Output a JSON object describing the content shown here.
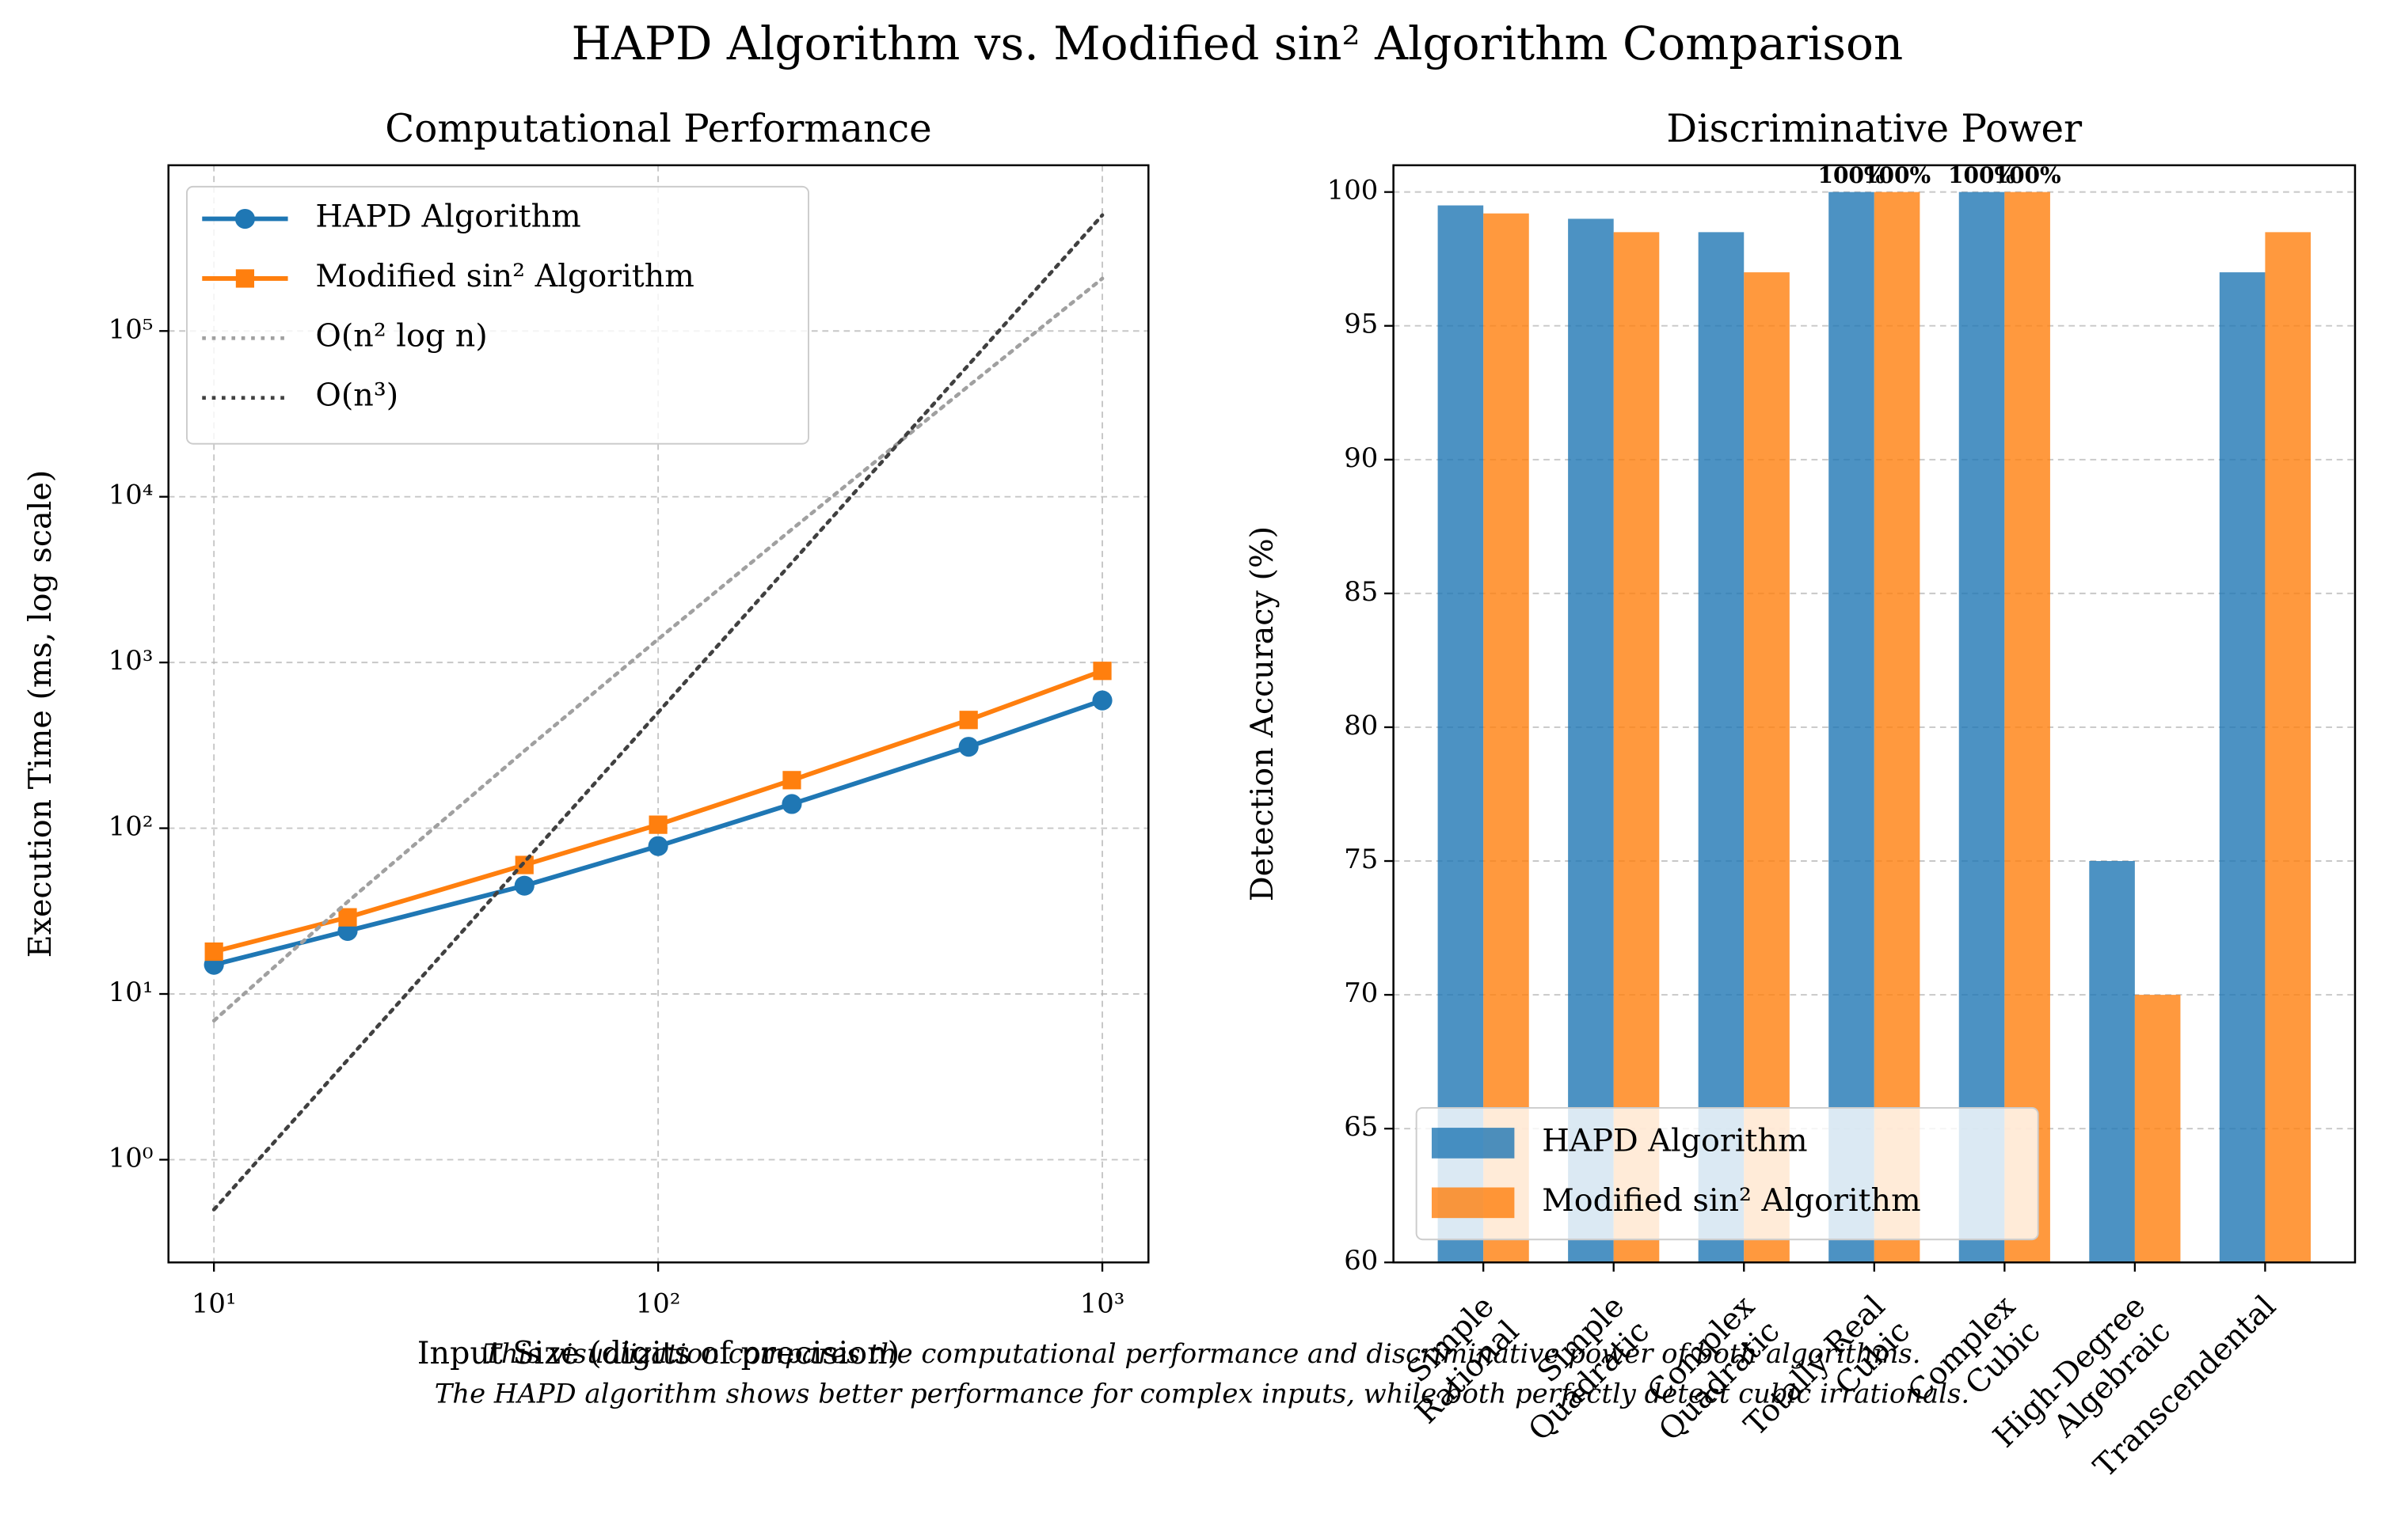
{
  "figure": {
    "title": "HAPD Algorithm vs. Modified sin² Algorithm Comparison",
    "notes": [
      "This visualization compares the computational performance and discriminative power of both algorithms.",
      "The HAPD algorithm shows better performance for complex inputs, while both perfectly detect cubic irrationals."
    ]
  },
  "chart_data": [
    {
      "type": "line",
      "title": "Computational Performance",
      "xlabel": "Input Size (digits of precision)",
      "ylabel": "Execution Time (ms, log scale)",
      "x": [
        10,
        20,
        50,
        100,
        200,
        500,
        1000
      ],
      "xscale": "log",
      "yscale": "log",
      "xlim": [
        7.9,
        1270
      ],
      "ylim": [
        0.24,
        1000000
      ],
      "xticks": [
        {
          "value": 10,
          "label": "10¹"
        },
        {
          "value": 100,
          "label": "10²"
        },
        {
          "value": 1000,
          "label": "10³"
        }
      ],
      "yticks": [
        {
          "value": 1,
          "label": "10⁰"
        },
        {
          "value": 10,
          "label": "10¹"
        },
        {
          "value": 100,
          "label": "10²"
        },
        {
          "value": 1000,
          "label": "10³"
        },
        {
          "value": 10000,
          "label": "10⁴"
        },
        {
          "value": 100000,
          "label": "10⁵"
        }
      ],
      "grid": "both",
      "legend": "upper left",
      "series": [
        {
          "name": "HAPD Algorithm",
          "color": "#1f77b4",
          "marker": "circle",
          "values": [
            15,
            24,
            45,
            78,
            140,
            310,
            590
          ]
        },
        {
          "name": "Modified sin² Algorithm",
          "color": "#ff7f0e",
          "marker": "square",
          "values": [
            18,
            29,
            60,
            105,
            195,
            450,
            890
          ]
        },
        {
          "name": "O(n² log n)",
          "color": "#a0a0a0",
          "linestyle": "dotted",
          "values": [
            6.9,
            36,
            293,
            1382,
            6358,
            46610,
            207233
          ]
        },
        {
          "name": "O(n³)",
          "color": "#404040",
          "linestyle": "dotted",
          "values": [
            0.5,
            4,
            62.5,
            500,
            4000,
            62500,
            500000
          ]
        }
      ]
    },
    {
      "type": "bar",
      "title": "Discriminative Power",
      "ylabel": "Detection Accuracy (%)",
      "categories": [
        "Simple\nRational",
        "Simple\nQuadratic",
        "Complex\nQuadratic",
        "Totally Real\nCubic",
        "Complex\nCubic",
        "High-Degree\nAlgebraic",
        "Transcendental"
      ],
      "ylim": [
        60,
        101
      ],
      "yticks": [
        60,
        65,
        70,
        75,
        80,
        85,
        90,
        95,
        100
      ],
      "grid": "y",
      "legend": "lower left",
      "alpha": 0.8,
      "series": [
        {
          "name": "HAPD Algorithm",
          "color": "#1f77b4",
          "values": [
            99.5,
            99,
            98.5,
            100,
            100,
            75,
            97
          ],
          "value_labels": [
            null,
            null,
            null,
            "100%",
            "100%",
            null,
            null
          ]
        },
        {
          "name": "Modified sin² Algorithm",
          "color": "#ff7f0e",
          "values": [
            99.2,
            98.5,
            97,
            100,
            100,
            70,
            98.5
          ],
          "value_labels": [
            null,
            null,
            null,
            "100%",
            "100%",
            null,
            null
          ]
        }
      ]
    }
  ]
}
